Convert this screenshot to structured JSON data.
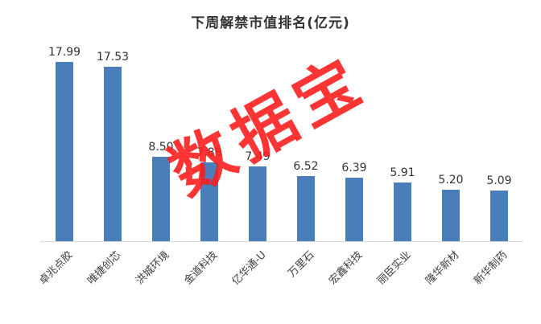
{
  "chart_data": {
    "type": "bar",
    "title": "下周解禁市值排名(亿元)",
    "categories": [
      "卓兆点胶",
      "唯捷创芯",
      "洪城环境",
      "金道科技",
      "亿华通-U",
      "万里石",
      "宏鑫科技",
      "丽臣实业",
      "隆华新材",
      "新华制药"
    ],
    "values": [
      17.99,
      17.53,
      8.5,
      7.88,
      7.49,
      6.52,
      6.39,
      5.91,
      5.2,
      5.09
    ],
    "value_labels": [
      "17.99",
      "17.53",
      "8.50",
      "7.88",
      "7.49",
      "6.52",
      "6.39",
      "5.91",
      "5.20",
      "5.09"
    ],
    "xlabel": "",
    "ylabel": "",
    "ylim": [
      0,
      20
    ],
    "grid": false,
    "legend": false,
    "bar_color": "#4a7eba",
    "axis_line_color": "#d9d9d9",
    "watermark": {
      "text": "数据宝",
      "color": "#ff1a1a"
    }
  }
}
